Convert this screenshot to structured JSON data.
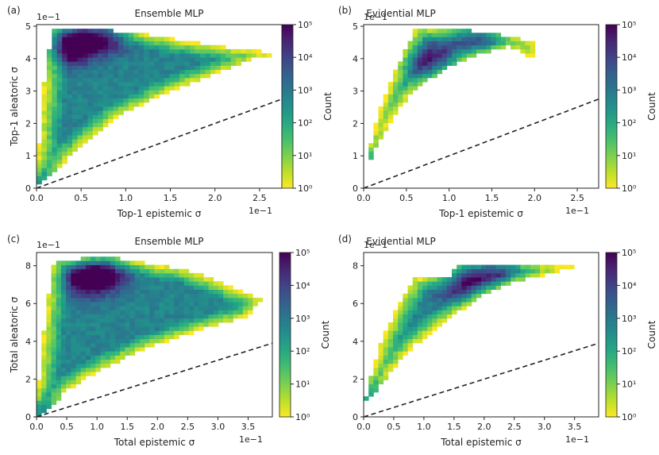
{
  "chart_data": [
    {
      "type": "heatmap",
      "panel_label": "(a)",
      "title": "Ensemble MLP",
      "xlabel": "Top-1 epistemic σ",
      "ylabel": "Top-1 aleatoric σ",
      "x_multiplier": "1e−1",
      "y_multiplier": "1e−1",
      "xlim": [
        0,
        2.75
      ],
      "ylim": [
        0,
        5.05
      ],
      "xticks": [
        "0.0",
        "0.5",
        "1.0",
        "1.5",
        "2.0",
        "2.5"
      ],
      "yticks": [
        "0",
        "1",
        "2",
        "3",
        "4",
        "5"
      ],
      "reference_line": {
        "x": [
          0,
          2.75
        ],
        "y": [
          0,
          2.75
        ]
      },
      "colorbar": {
        "label": "Count",
        "scale": "log",
        "min": 1,
        "max": 100000,
        "ticks": [
          "10⁰",
          "10¹",
          "10²",
          "10³",
          "10⁴",
          "10⁵"
        ]
      },
      "density_outline": [
        [
          0.0,
          0.0
        ],
        [
          0.02,
          1.1
        ],
        [
          0.08,
          3.2
        ],
        [
          0.15,
          4.4
        ],
        [
          0.19,
          4.92
        ],
        [
          0.6,
          4.95
        ],
        [
          1.2,
          4.75
        ],
        [
          2.0,
          4.4
        ],
        [
          2.75,
          4.15
        ],
        [
          2.5,
          4.05
        ],
        [
          1.5,
          3.0
        ],
        [
          0.9,
          2.2
        ],
        [
          0.45,
          1.15
        ],
        [
          0.15,
          0.4
        ]
      ],
      "density_peaks": [
        [
          0.06,
          0.05
        ],
        [
          0.35,
          4.3
        ],
        [
          0.5,
          4.7
        ],
        [
          0.8,
          4.8
        ]
      ]
    },
    {
      "type": "heatmap",
      "panel_label": "(b)",
      "title": "Evidential MLP",
      "xlabel": "Top-1 epistemic σ",
      "ylabel": "",
      "x_multiplier": "1e−1",
      "y_multiplier": "1e−1",
      "xlim": [
        0,
        2.75
      ],
      "ylim": [
        0,
        5.05
      ],
      "xticks": [
        "0.0",
        "0.5",
        "1.0",
        "1.5",
        "2.0",
        "2.5"
      ],
      "yticks": [
        "0",
        "1",
        "2",
        "3",
        "4",
        "5"
      ],
      "reference_line": {
        "x": [
          0,
          2.75
        ],
        "y": [
          0,
          2.75
        ]
      },
      "colorbar": {
        "label": "Count",
        "scale": "log",
        "min": 1,
        "max": 100000,
        "ticks": [
          "10⁰",
          "10¹",
          "10²",
          "10³",
          "10⁴",
          "10⁵"
        ]
      },
      "density_outline": [
        [
          0.03,
          0.6
        ],
        [
          0.1,
          1.6
        ],
        [
          0.2,
          2.5
        ],
        [
          0.35,
          3.5
        ],
        [
          0.5,
          4.3
        ],
        [
          0.6,
          4.95
        ],
        [
          1.0,
          4.95
        ],
        [
          1.6,
          4.75
        ],
        [
          1.98,
          4.5
        ],
        [
          1.98,
          4.0
        ],
        [
          1.7,
          4.4
        ],
        [
          1.3,
          4.1
        ],
        [
          0.9,
          3.6
        ],
        [
          0.55,
          2.9
        ],
        [
          0.3,
          2.0
        ],
        [
          0.12,
          1.1
        ],
        [
          0.04,
          0.55
        ]
      ],
      "density_peaks": [
        [
          0.02,
          0.7
        ],
        [
          1.35,
          4.75
        ],
        [
          0.8,
          3.9
        ]
      ]
    },
    {
      "type": "heatmap",
      "panel_label": "(c)",
      "title": "Ensemble MLP",
      "xlabel": "Total epistemic σ",
      "ylabel": "Total aleatoric σ",
      "x_multiplier": "1e−1",
      "y_multiplier": "1e−1",
      "xlim": [
        0,
        3.9
      ],
      "ylim": [
        0,
        8.7
      ],
      "xticks": [
        "0.0",
        "0.5",
        "1.0",
        "1.5",
        "2.0",
        "2.5",
        "3.0",
        "3.5"
      ],
      "yticks": [
        "0",
        "2",
        "4",
        "6",
        "8"
      ],
      "reference_line": {
        "x": [
          0,
          3.9
        ],
        "y": [
          0,
          3.9
        ]
      },
      "colorbar": {
        "label": "Count",
        "scale": "log",
        "min": 1,
        "max": 100000,
        "ticks": [
          "10⁰",
          "10¹",
          "10²",
          "10³",
          "10⁴",
          "10⁵"
        ]
      },
      "density_outline": [
        [
          0.0,
          0.0
        ],
        [
          0.05,
          2.5
        ],
        [
          0.15,
          5.5
        ],
        [
          0.3,
          8.3
        ],
        [
          1.2,
          8.45
        ],
        [
          2.5,
          7.8
        ],
        [
          3.7,
          6.2
        ],
        [
          3.5,
          5.3
        ],
        [
          2.6,
          4.5
        ],
        [
          1.8,
          3.6
        ],
        [
          1.0,
          2.4
        ],
        [
          0.5,
          1.4
        ],
        [
          0.2,
          0.4
        ]
      ],
      "density_peaks": [
        [
          0.05,
          0.1
        ],
        [
          0.8,
          7.3
        ],
        [
          1.1,
          7.6
        ]
      ]
    },
    {
      "type": "heatmap",
      "panel_label": "(d)",
      "title": "Evidential MLP",
      "xlabel": "Total epistemic σ",
      "ylabel": "",
      "x_multiplier": "1e−1",
      "y_multiplier": "1e−1",
      "xlim": [
        0,
        3.9
      ],
      "ylim": [
        0,
        8.7
      ],
      "xticks": [
        "0.0",
        "0.5",
        "1.0",
        "1.5",
        "2.0",
        "2.5",
        "3.0",
        "3.5"
      ],
      "yticks": [
        "0",
        "2",
        "4",
        "6",
        "8"
      ],
      "reference_line": {
        "x": [
          0,
          3.9
        ],
        "y": [
          0,
          3.9
        ]
      },
      "colorbar": {
        "label": "Count",
        "scale": "log",
        "min": 1,
        "max": 100000,
        "ticks": [
          "10⁰",
          "10¹",
          "10²",
          "10³",
          "10⁴",
          "10⁵"
        ]
      },
      "density_outline": [
        [
          0.02,
          0.8
        ],
        [
          0.15,
          2.6
        ],
        [
          0.35,
          4.4
        ],
        [
          0.6,
          6.1
        ],
        [
          0.85,
          7.3
        ],
        [
          1.4,
          7.35
        ],
        [
          1.6,
          8.1
        ],
        [
          2.6,
          8.15
        ],
        [
          3.85,
          7.85
        ],
        [
          3.3,
          7.75
        ],
        [
          2.5,
          7.15
        ],
        [
          1.9,
          6.3
        ],
        [
          1.3,
          4.9
        ],
        [
          0.85,
          3.8
        ],
        [
          0.45,
          2.4
        ],
        [
          0.12,
          1.0
        ]
      ],
      "density_peaks": [
        [
          0.02,
          0.9
        ],
        [
          2.2,
          7.9
        ],
        [
          1.6,
          7.1
        ]
      ]
    }
  ]
}
